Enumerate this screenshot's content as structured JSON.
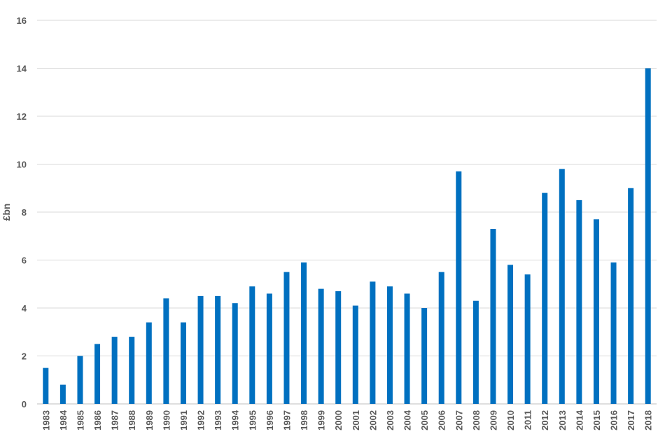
{
  "chart_data": {
    "type": "bar",
    "title": "",
    "xlabel": "",
    "ylabel": "£bn",
    "ylim": [
      0,
      16
    ],
    "yticks": [
      0,
      2,
      4,
      6,
      8,
      10,
      12,
      14,
      16
    ],
    "grid": true,
    "legend": "none",
    "bar_color": "#0070C0",
    "categories": [
      "1983",
      "1984",
      "1985",
      "1986",
      "1987",
      "1988",
      "1989",
      "1990",
      "1991",
      "1992",
      "1993",
      "1994",
      "1995",
      "1996",
      "1997",
      "1998",
      "1999",
      "2000",
      "2001",
      "2002",
      "2003",
      "2004",
      "2005",
      "2006",
      "2007",
      "2008",
      "2009",
      "2010",
      "2011",
      "2012",
      "2013",
      "2014",
      "2015",
      "2016",
      "2017",
      "2018"
    ],
    "values": [
      1.5,
      0.8,
      2.0,
      2.5,
      2.8,
      2.8,
      3.4,
      4.4,
      3.4,
      4.5,
      4.5,
      4.2,
      4.9,
      4.6,
      5.5,
      5.9,
      4.8,
      4.7,
      4.1,
      5.1,
      4.9,
      4.6,
      4.0,
      5.5,
      9.7,
      4.3,
      7.3,
      5.8,
      5.4,
      8.8,
      9.8,
      8.5,
      7.7,
      5.9,
      9.0,
      14.0
    ]
  }
}
